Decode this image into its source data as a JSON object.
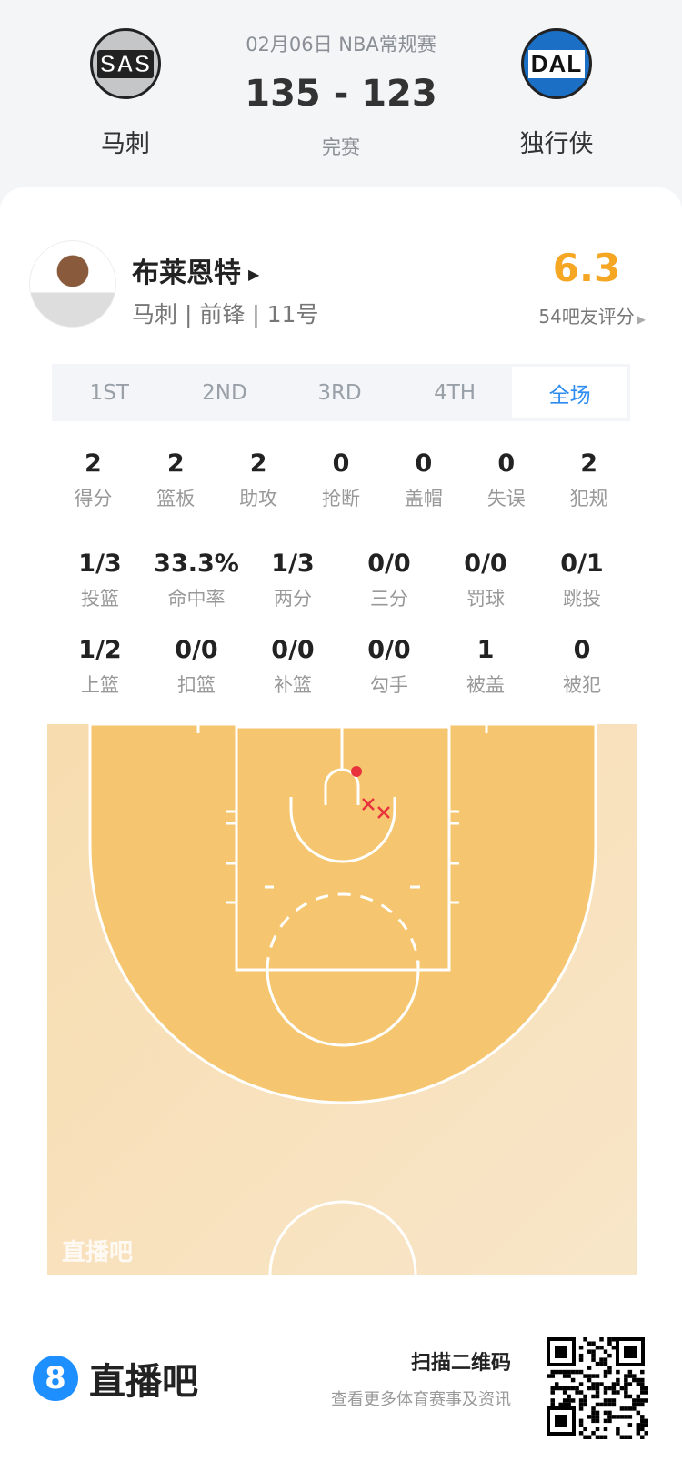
{
  "header": {
    "date_league": "02月06日 NBA常规赛",
    "score": "135 - 123",
    "status": "完赛",
    "home": {
      "abbr": "SAS",
      "name": "马刺"
    },
    "away": {
      "abbr": "DAL",
      "name": "独行侠"
    }
  },
  "player": {
    "name": "布莱恩特",
    "info": "马刺 | 前锋 | 11号",
    "rating": "6.3",
    "rating_label": "54吧友评分"
  },
  "tabs": [
    {
      "label": "1ST"
    },
    {
      "label": "2ND"
    },
    {
      "label": "3RD"
    },
    {
      "label": "4TH"
    },
    {
      "label": "全场",
      "active": true
    }
  ],
  "stats_row1": [
    {
      "v": "2",
      "l": "得分"
    },
    {
      "v": "2",
      "l": "篮板"
    },
    {
      "v": "2",
      "l": "助攻"
    },
    {
      "v": "0",
      "l": "抢断"
    },
    {
      "v": "0",
      "l": "盖帽"
    },
    {
      "v": "0",
      "l": "失误"
    },
    {
      "v": "2",
      "l": "犯规"
    }
  ],
  "stats_row2": [
    {
      "v": "1/3",
      "l": "投篮"
    },
    {
      "v": "33.3%",
      "l": "命中率"
    },
    {
      "v": "1/3",
      "l": "两分"
    },
    {
      "v": "0/0",
      "l": "三分"
    },
    {
      "v": "0/0",
      "l": "罚球"
    },
    {
      "v": "0/1",
      "l": "跳投"
    }
  ],
  "stats_row3": [
    {
      "v": "1/2",
      "l": "上篮"
    },
    {
      "v": "0/0",
      "l": "扣篮"
    },
    {
      "v": "0/0",
      "l": "补篮"
    },
    {
      "v": "0/0",
      "l": "勾手"
    },
    {
      "v": "1",
      "l": "被盖"
    },
    {
      "v": "0",
      "l": "被犯"
    }
  ],
  "court": {
    "watermark": "直播吧",
    "shots": [
      {
        "result": "made",
        "marker": "dot"
      },
      {
        "result": "missed",
        "marker": "x"
      },
      {
        "result": "missed",
        "marker": "x"
      }
    ]
  },
  "footer": {
    "brand": "直播吧",
    "brand_icon": "8",
    "qr_title": "扫描二维码",
    "qr_subtitle": "查看更多体育赛事及资讯"
  },
  "colors": {
    "rating": "#f5a623",
    "accent": "#2d8cf0",
    "shot": "#e8323c",
    "court_inner": "#f5c66f",
    "court_outer": "#f7e2bd"
  }
}
